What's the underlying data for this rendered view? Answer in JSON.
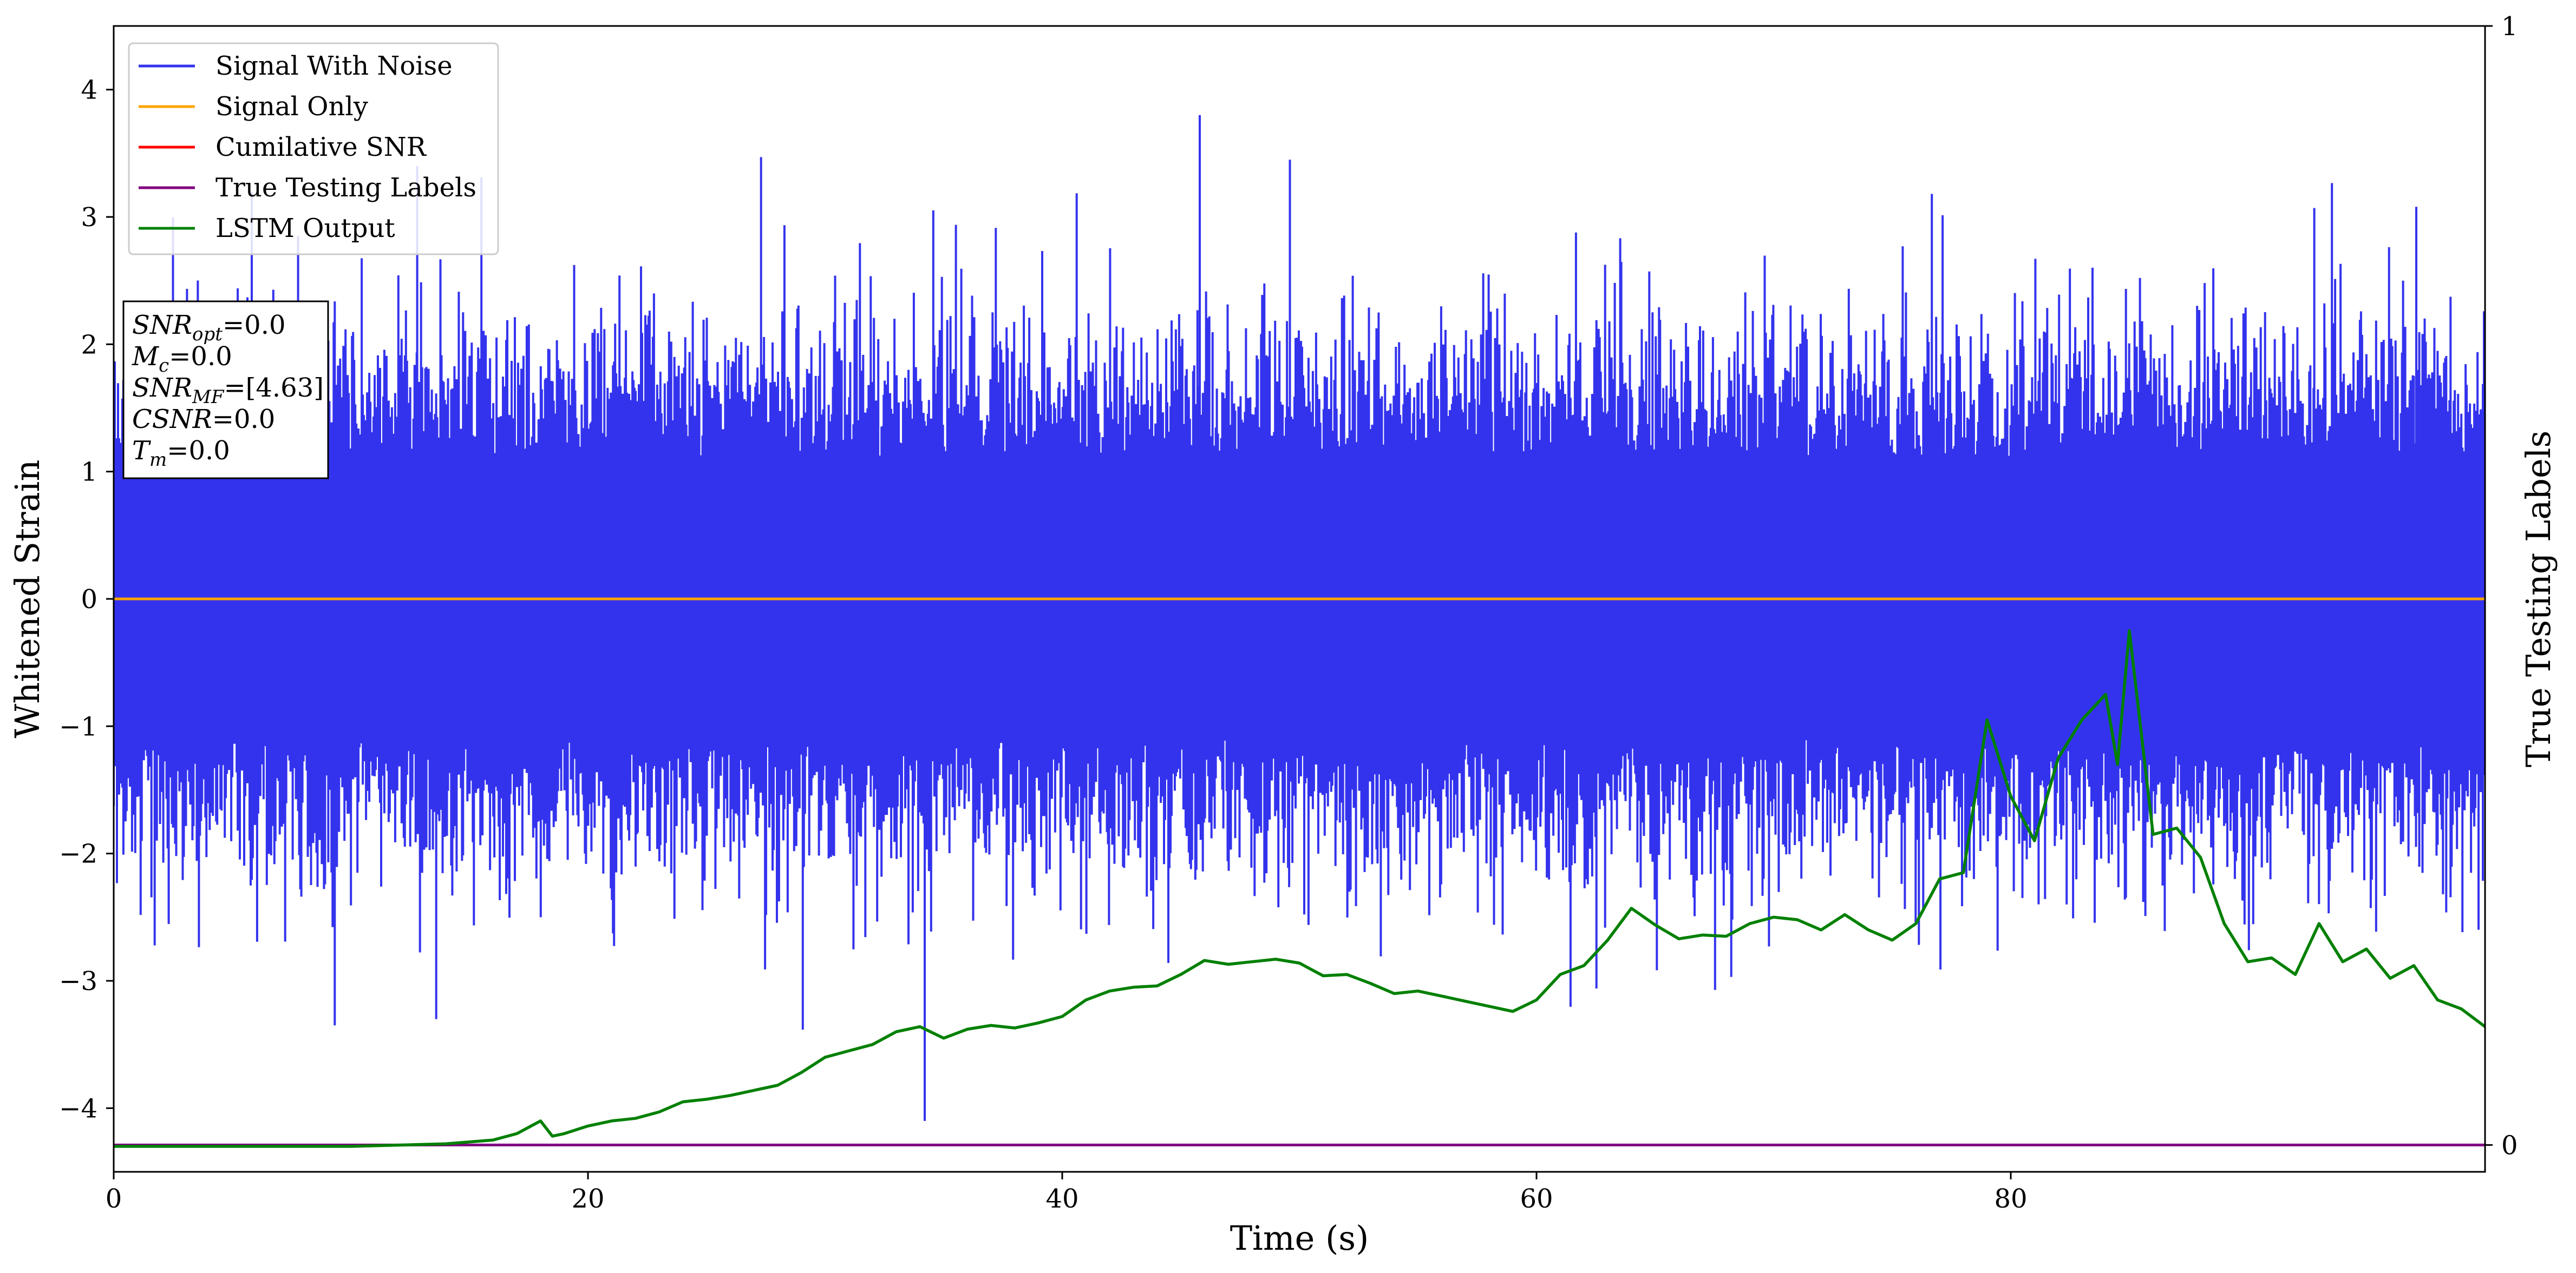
{
  "chart_data": {
    "type": "line",
    "xlabel": "Time (s)",
    "ylabel": "Whitened Strain",
    "y2label": "True Testing Labels",
    "xlim": [
      0,
      100
    ],
    "ylim": [
      -4.5,
      4.5
    ],
    "y2lim": [
      -0.024,
      1.0
    ],
    "x_ticks": [
      0,
      20,
      40,
      60,
      80
    ],
    "y_ticks": [
      -4,
      -3,
      -2,
      -1,
      0,
      1,
      2,
      3,
      4
    ],
    "y2_ticks": [
      0,
      1
    ],
    "legend_position": "upper-left",
    "grid": false,
    "series": [
      {
        "name": "Signal With Noise",
        "color": "#3333ee",
        "axis": "left",
        "description_of_values": "white-noise whitened strain, roughly within -2.5..2.5 with sparse spikes",
        "spikes": [
          [
            13.6,
            -3.3
          ],
          [
            12.8,
            3.4
          ],
          [
            27.3,
            3.47
          ],
          [
            34.2,
            -4.1
          ],
          [
            45.8,
            3.8
          ],
          [
            49.6,
            3.45
          ],
          [
            92.8,
            3.07
          ],
          [
            97.1,
            3.08
          ]
        ]
      },
      {
        "name": "Signal Only",
        "color": "#ffa500",
        "axis": "left",
        "x": [
          0,
          100
        ],
        "y": [
          0,
          0
        ]
      },
      {
        "name": "Cumilative SNR",
        "color": "#ff0000",
        "axis": "left",
        "x": [],
        "y": []
      },
      {
        "name": "True Testing Labels",
        "color": "#800080",
        "axis": "right",
        "x": [
          0,
          100
        ],
        "y": [
          0,
          0
        ]
      },
      {
        "name": "LSTM Output",
        "color": "#008000",
        "axis": "left",
        "x": [
          0,
          5,
          10,
          12,
          14,
          16,
          17,
          18,
          18.5,
          19,
          20,
          21,
          22,
          23,
          24,
          25,
          26,
          27,
          28,
          29,
          30,
          31,
          32,
          33,
          34,
          35,
          36,
          37,
          38,
          39,
          40,
          41,
          42,
          43,
          44,
          45,
          46,
          47,
          48,
          49,
          50,
          51,
          52,
          53,
          54,
          55,
          56,
          57,
          58,
          59,
          60,
          61,
          62,
          63,
          64,
          65,
          66,
          67,
          68,
          69,
          70,
          71,
          72,
          73,
          74,
          75,
          76,
          77,
          78,
          79,
          80,
          81,
          82,
          83,
          84,
          84.5,
          85,
          86,
          87,
          88,
          89,
          90,
          91,
          92,
          93,
          94,
          95,
          96,
          97,
          98,
          99,
          100
        ],
        "y": [
          -4.3,
          -4.3,
          -4.3,
          -4.29,
          -4.28,
          -4.25,
          -4.2,
          -4.1,
          -4.22,
          -4.2,
          -4.14,
          -4.1,
          -4.08,
          -4.03,
          -3.95,
          -3.93,
          -3.9,
          -3.86,
          -3.82,
          -3.72,
          -3.6,
          -3.55,
          -3.5,
          -3.4,
          -3.36,
          -3.45,
          -3.38,
          -3.35,
          -3.37,
          -3.33,
          -3.28,
          -3.15,
          -3.08,
          -3.05,
          -3.04,
          -2.95,
          -2.84,
          -2.87,
          -2.85,
          -2.83,
          -2.86,
          -2.96,
          -2.95,
          -3.02,
          -3.1,
          -3.08,
          -3.12,
          -3.16,
          -3.2,
          -3.24,
          -3.15,
          -2.95,
          -2.88,
          -2.68,
          -2.43,
          -2.56,
          -2.67,
          -2.64,
          -2.65,
          -2.55,
          -2.5,
          -2.52,
          -2.6,
          -2.48,
          -2.6,
          -2.68,
          -2.55,
          -2.2,
          -2.15,
          -0.95,
          -1.55,
          -1.9,
          -1.25,
          -0.95,
          -0.75,
          -1.3,
          -0.25,
          -1.85,
          -1.8,
          -2.03,
          -2.55,
          -2.85,
          -2.82,
          -2.95,
          -2.55,
          -2.85,
          -2.75,
          -2.98,
          -2.88,
          -3.15,
          -3.22,
          -3.36
        ]
      }
    ]
  },
  "info_box": {
    "lines": [
      {
        "sym": "SNR",
        "sub": "opt",
        "val": "=0.0"
      },
      {
        "sym": "M",
        "sub": "c",
        "val": "=0.0"
      },
      {
        "sym": "SNR",
        "sub": "MF",
        "val": "=[4.63]"
      },
      {
        "sym": "CSNR",
        "sub": "",
        "val": "=0.0"
      },
      {
        "sym": "T",
        "sub": "m",
        "val": "=0.0"
      }
    ]
  }
}
